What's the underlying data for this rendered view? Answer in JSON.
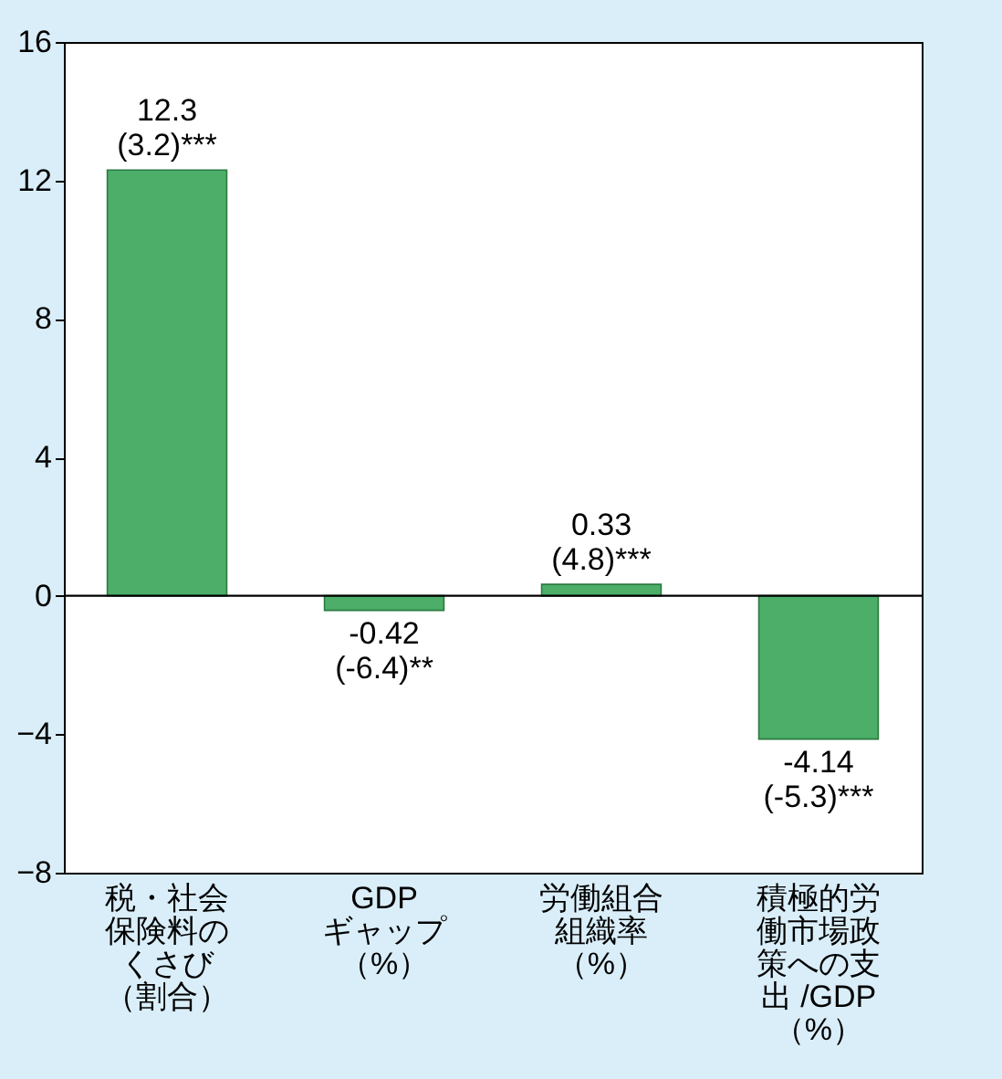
{
  "chart_data": {
    "type": "bar",
    "categories": [
      "税・社会保険料のくさび（割合）",
      "GDPギャップ（%）",
      "労働組合組織率（%）",
      "積極的労働市場政策への支出 /GDP（%）"
    ],
    "values": [
      12.3,
      -0.42,
      0.33,
      -4.14
    ],
    "color": "#4cae68",
    "value_labels": [
      "12.3\n(3.2)***",
      "-0.42\n(-6.4)**",
      "0.33\n(4.8)***",
      "-4.14\n(-5.3)***"
    ],
    "ylim": [
      -8,
      16
    ],
    "yticks": [
      -8,
      -4,
      0,
      4,
      8,
      12,
      16
    ],
    "ref_lines": [
      {
        "axis": "y",
        "value": 0,
        "color": "#000000"
      }
    ],
    "grid": false
  }
}
